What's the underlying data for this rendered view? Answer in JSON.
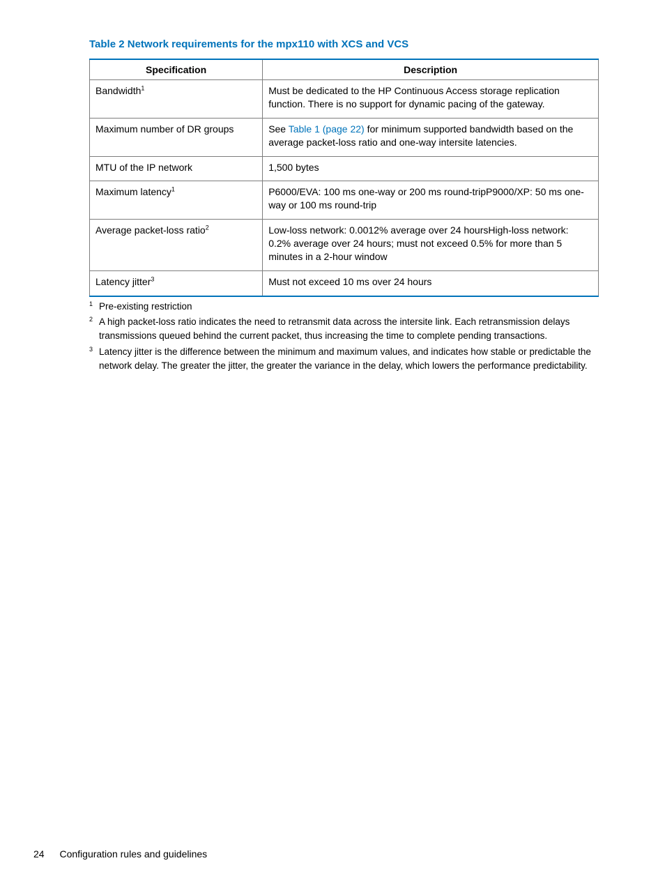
{
  "colors": {
    "accent": "#0073ba",
    "border": "#7d7d7d",
    "text": "#000000",
    "background": "#ffffff"
  },
  "table": {
    "title": "Table 2 Network requirements for the mpx110 with XCS and VCS",
    "columns": {
      "spec": "Specification",
      "desc": "Description"
    },
    "rows": [
      {
        "spec": "Bandwidth",
        "spec_sup": "1",
        "desc_pre": "Must be dedicated to the HP Continuous Access storage replication function. There is no support for dynamic pacing of the gateway.",
        "desc_link": "",
        "desc_post": ""
      },
      {
        "spec": "Maximum number of DR groups",
        "spec_sup": "",
        "desc_pre": "See ",
        "desc_link": "Table 1 (page 22)",
        "desc_post": " for minimum supported bandwidth based on the average packet-loss ratio and one-way intersite latencies."
      },
      {
        "spec": "MTU of the IP network",
        "spec_sup": "",
        "desc_pre": "1,500 bytes",
        "desc_link": "",
        "desc_post": ""
      },
      {
        "spec": "Maximum latency",
        "spec_sup": "1",
        "desc_pre": "P6000/EVA: 100 ms one-way or 200 ms round-tripP9000/XP: 50 ms one-way or 100 ms round-trip",
        "desc_link": "",
        "desc_post": ""
      },
      {
        "spec": "Average packet-loss ratio",
        "spec_sup": "2",
        "desc_pre": "Low-loss network: 0.0012% average over 24 hoursHigh-loss network: 0.2% average over 24 hours; must not exceed 0.5% for more than 5 minutes in a 2-hour window",
        "desc_link": "",
        "desc_post": ""
      },
      {
        "spec": "Latency jitter",
        "spec_sup": "3",
        "desc_pre": "Must not exceed 10 ms over 24 hours",
        "desc_link": "",
        "desc_post": ""
      }
    ]
  },
  "footnotes": [
    {
      "mark": "1",
      "text": "Pre-existing restriction"
    },
    {
      "mark": "2",
      "text": "A high packet-loss ratio indicates the need to retransmit data across the intersite link. Each retransmission delays transmissions queued behind the current packet, thus increasing the time to complete pending transactions."
    },
    {
      "mark": "3",
      "text": "Latency jitter is the difference between the minimum and maximum values, and indicates how stable or predictable the network delay. The greater the jitter, the greater the variance in the delay, which lowers the performance predictability."
    }
  ],
  "footer": {
    "page_number": "24",
    "section": "Configuration rules and guidelines"
  }
}
